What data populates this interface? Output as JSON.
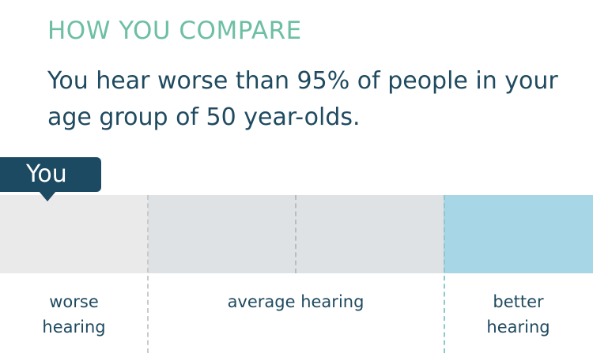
{
  "comparison": {
    "heading": "HOW YOU COMPARE",
    "summary": "You hear worse than 95% of people in your age group of 50 year-olds.",
    "you_marker_label": "You",
    "segments": [
      {
        "label_line1": "worse",
        "label_line2": "hearing"
      },
      {
        "label_line1": "average hearing",
        "label_line2": ""
      },
      {
        "label_line1": "better",
        "label_line2": "hearing"
      }
    ],
    "colors": {
      "heading": "#6dbfa3",
      "text": "#1f4a60",
      "marker": "#1c4a62",
      "worse": "#ebeaeb",
      "average": "#dfe2e4",
      "better": "#a7d6e6"
    }
  }
}
